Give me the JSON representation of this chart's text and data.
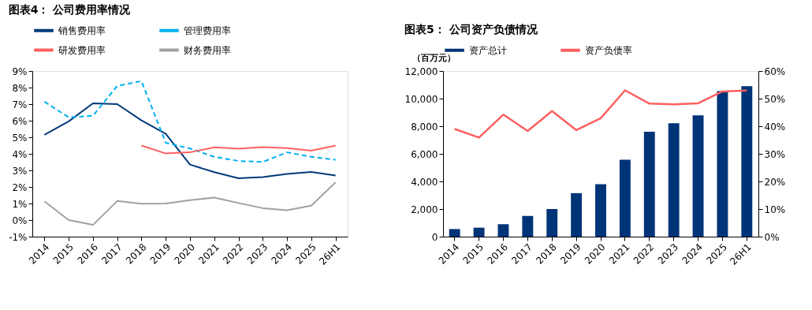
{
  "chart_data": [
    {
      "type": "line",
      "title": "图表4： 公司费用率情况",
      "categories": [
        "2014",
        "2015",
        "2016",
        "2017",
        "2018",
        "2019",
        "2020",
        "2021",
        "2022",
        "2023",
        "2024",
        "2025",
        "26H1"
      ],
      "ylim": [
        -1,
        9
      ],
      "yticks": [
        {
          "value": -1,
          "label": "-1%"
        },
        {
          "value": 0,
          "label": "0%"
        },
        {
          "value": 1,
          "label": "1%"
        },
        {
          "value": 2,
          "label": "2%"
        },
        {
          "value": 3,
          "label": "3%"
        },
        {
          "value": 4,
          "label": "4%"
        },
        {
          "value": 5,
          "label": "5%"
        },
        {
          "value": 6,
          "label": "6%"
        },
        {
          "value": 7,
          "label": "7%"
        },
        {
          "value": 8,
          "label": "8%"
        },
        {
          "value": 9,
          "label": "9%"
        }
      ],
      "legend": "top",
      "series": [
        {
          "name": "销售费用率",
          "color": "#003a78",
          "line_style": "solid",
          "values": [
            5.15,
            5.96,
            7.05,
            7.0,
            6.02,
            5.21,
            3.35,
            2.89,
            2.52,
            2.59,
            2.79,
            2.9,
            2.69
          ]
        },
        {
          "name": "管理费用率",
          "color": "#00b0f0",
          "line_style": "dashed",
          "values": [
            7.15,
            6.2,
            6.3,
            8.1,
            8.39,
            4.67,
            4.32,
            3.82,
            3.57,
            3.51,
            4.09,
            3.82,
            3.64
          ]
        },
        {
          "name": "研发费用率",
          "color": "#ff6161",
          "line_style": "solid",
          "values": [
            null,
            null,
            null,
            null,
            4.5,
            4.02,
            4.09,
            4.39,
            4.31,
            4.4,
            4.35,
            4.19,
            4.5
          ]
        },
        {
          "name": "财务费用率",
          "color": "#a0a0a0",
          "line_style": "solid",
          "values": [
            1.13,
            0.0,
            -0.29,
            1.15,
            0.99,
            1.0,
            1.2,
            1.36,
            1.03,
            0.72,
            0.6,
            0.87,
            2.28
          ]
        }
      ]
    },
    {
      "type": "bar",
      "title": "图表5： 公司资产负债情况",
      "ylabel": "（百万元）",
      "categories": [
        "2014",
        "2015",
        "2016",
        "2017",
        "2018",
        "2019",
        "2020",
        "2021",
        "2022",
        "2023",
        "2024",
        "2025",
        "26H1"
      ],
      "ylim": [
        0,
        12000
      ],
      "yticks": [
        {
          "value": 0,
          "label": "0"
        },
        {
          "value": 2000,
          "label": "2,000"
        },
        {
          "value": 4000,
          "label": "4,000"
        },
        {
          "value": 6000,
          "label": "6,000"
        },
        {
          "value": 8000,
          "label": "8,000"
        },
        {
          "value": 10000,
          "label": "10,000"
        },
        {
          "value": 12000,
          "label": "12,000"
        }
      ],
      "y2lim": [
        0,
        60
      ],
      "y2ticks": [
        {
          "value": 0,
          "label": "0%"
        },
        {
          "value": 10,
          "label": "10%"
        },
        {
          "value": 20,
          "label": "20%"
        },
        {
          "value": 30,
          "label": "30%"
        },
        {
          "value": 40,
          "label": "40%"
        },
        {
          "value": 50,
          "label": "50%"
        },
        {
          "value": 60,
          "label": "60%"
        }
      ],
      "legend": "top",
      "series": [
        {
          "name": "资产总计",
          "color": "#003478",
          "type": "bar",
          "values": [
            550,
            650,
            900,
            1500,
            2000,
            3150,
            3800,
            5570,
            7600,
            8210,
            8790,
            10550,
            10900
          ]
        },
        {
          "name": "资产负债率",
          "color": "#ff5f5f",
          "type": "line",
          "axis": "y2",
          "values": [
            39.0,
            35.9,
            44.2,
            38.3,
            45.5,
            38.6,
            42.9,
            53.0,
            48.2,
            47.9,
            48.3,
            52.6,
            52.9
          ]
        }
      ]
    }
  ]
}
